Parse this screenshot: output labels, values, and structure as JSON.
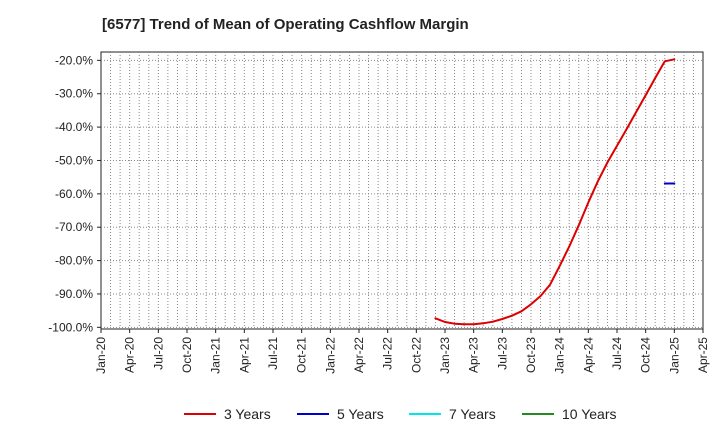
{
  "chart_data": {
    "type": "line",
    "title": "[6577]  Trend of Mean of Operating Cashflow Margin",
    "xlabel": "",
    "ylabel": "",
    "x_ticks": [
      "Jan-20",
      "Apr-20",
      "Jul-20",
      "Oct-20",
      "Jan-21",
      "Apr-21",
      "Jul-21",
      "Oct-21",
      "Jan-22",
      "Apr-22",
      "Jul-22",
      "Oct-22",
      "Jan-23",
      "Apr-23",
      "Jul-23",
      "Oct-23",
      "Jan-24",
      "Apr-24",
      "Jul-24",
      "Oct-24",
      "Jan-25",
      "Apr-25"
    ],
    "y_ticks": [
      "-20.0%",
      "-30.0%",
      "-40.0%",
      "-50.0%",
      "-60.0%",
      "-70.0%",
      "-80.0%",
      "-90.0%",
      "-100.0%"
    ],
    "y_tick_values": [
      -20,
      -30,
      -40,
      -50,
      -60,
      -70,
      -80,
      -90,
      -100
    ],
    "ylim": [
      -100.5,
      -17.5
    ],
    "grid": true,
    "legend_position": "bottom",
    "series": [
      {
        "name": "3 Years",
        "color": "#dd0000",
        "points": [
          [
            "Dec-22",
            -97.3
          ],
          [
            "Jan-23",
            -98.4
          ],
          [
            "Feb-23",
            -98.9
          ],
          [
            "Mar-23",
            -99.1
          ],
          [
            "Apr-23",
            -99.1
          ],
          [
            "May-23",
            -98.8
          ],
          [
            "Jun-23",
            -98.3
          ],
          [
            "Jul-23",
            -97.5
          ],
          [
            "Aug-23",
            -96.5
          ],
          [
            "Sep-23",
            -95.2
          ],
          [
            "Oct-23",
            -93.1
          ],
          [
            "Nov-23",
            -90.6
          ],
          [
            "Dec-23",
            -87.2
          ],
          [
            "Jan-24",
            -81.6
          ],
          [
            "Feb-24",
            -75.8
          ],
          [
            "Mar-24",
            -69.4
          ],
          [
            "Apr-24",
            -62.6
          ],
          [
            "May-24",
            -56.2
          ],
          [
            "Jun-24",
            -50.6
          ],
          [
            "Jul-24",
            -45.6
          ],
          [
            "Aug-24",
            -40.6
          ],
          [
            "Sep-24",
            -35.5
          ],
          [
            "Oct-24",
            -30.4
          ],
          [
            "Nov-24",
            -25.3
          ],
          [
            "Dec-24",
            -20.3
          ],
          [
            "Jan-25",
            -19.7
          ]
        ]
      },
      {
        "name": "5 Years",
        "color": "#0000cc",
        "points": [
          [
            "Dec-24",
            -56.9
          ],
          [
            "Jan-25",
            -56.9
          ]
        ]
      },
      {
        "name": "7 Years",
        "color": "#00e5ee",
        "points": []
      },
      {
        "name": "10 Years",
        "color": "#228b22",
        "points": []
      }
    ]
  }
}
